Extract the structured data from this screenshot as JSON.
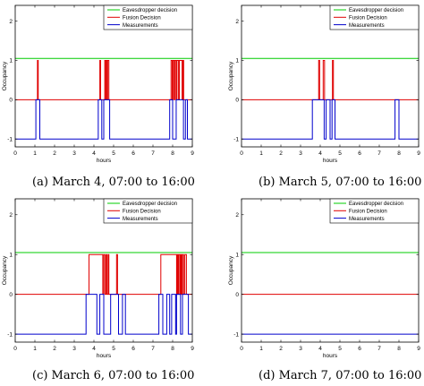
{
  "series_styles": [
    {
      "color": "#00cc00"
    },
    {
      "color": "#e00000"
    },
    {
      "color": "#0000cc"
    }
  ],
  "panels": [
    {
      "caption": "(a) March 4, 07:00 to 16:00",
      "chart_data": {
        "type": "line",
        "title": "",
        "xlabel": "hours",
        "ylabel": "Occupancy",
        "xlim": [
          0,
          9
        ],
        "ylim": [
          -1.2,
          2.4
        ],
        "xticks": [
          "0",
          "1",
          "2",
          "3",
          "4",
          "5",
          "6",
          "7",
          "8",
          "9"
        ],
        "yticks": [
          "-1",
          "0",
          "1",
          "2"
        ],
        "legend_position": "top-right",
        "series": [
          {
            "name": "Eavesdropper decision",
            "points": [
              [
                0,
                1.05
              ],
              [
                9,
                1.05
              ]
            ]
          },
          {
            "name": "Fusion Decision",
            "points": [
              [
                0,
                0
              ],
              [
                1.13,
                0
              ],
              [
                1.13,
                1
              ],
              [
                1.17,
                1
              ],
              [
                1.17,
                0
              ],
              [
                4.3,
                0
              ],
              [
                4.3,
                1
              ],
              [
                4.34,
                1
              ],
              [
                4.34,
                0
              ],
              [
                4.55,
                0
              ],
              [
                4.55,
                1
              ],
              [
                4.6,
                1
              ],
              [
                4.6,
                0
              ],
              [
                4.63,
                0
              ],
              [
                4.63,
                1
              ],
              [
                4.68,
                1
              ],
              [
                4.68,
                0
              ],
              [
                4.7,
                0
              ],
              [
                4.7,
                1
              ],
              [
                4.76,
                1
              ],
              [
                4.76,
                0
              ],
              [
                7.92,
                0
              ],
              [
                7.92,
                1
              ],
              [
                7.98,
                1
              ],
              [
                7.98,
                0
              ],
              [
                8.02,
                0
              ],
              [
                8.02,
                1
              ],
              [
                8.08,
                1
              ],
              [
                8.08,
                0
              ],
              [
                8.12,
                0
              ],
              [
                8.12,
                1
              ],
              [
                8.18,
                1
              ],
              [
                8.18,
                0
              ],
              [
                8.22,
                0
              ],
              [
                8.22,
                1
              ],
              [
                8.3,
                1
              ],
              [
                8.3,
                0
              ],
              [
                8.34,
                0
              ],
              [
                8.34,
                1
              ],
              [
                8.48,
                1
              ],
              [
                8.48,
                0
              ],
              [
                8.52,
                0
              ],
              [
                8.52,
                1
              ],
              [
                8.56,
                1
              ],
              [
                8.56,
                0
              ],
              [
                9,
                0
              ]
            ]
          },
          {
            "name": "Measurements",
            "points": [
              [
                0,
                -1
              ],
              [
                1.05,
                -1
              ],
              [
                1.05,
                0
              ],
              [
                1.25,
                0
              ],
              [
                1.25,
                -1
              ],
              [
                4.22,
                -1
              ],
              [
                4.22,
                0
              ],
              [
                4.4,
                0
              ],
              [
                4.4,
                -1
              ],
              [
                4.5,
                -1
              ],
              [
                4.5,
                0
              ],
              [
                4.8,
                0
              ],
              [
                4.8,
                -1
              ],
              [
                7.85,
                -1
              ],
              [
                7.85,
                0
              ],
              [
                8.0,
                0
              ],
              [
                8.0,
                -1
              ],
              [
                8.18,
                -1
              ],
              [
                8.18,
                0
              ],
              [
                8.55,
                0
              ],
              [
                8.55,
                -1
              ],
              [
                8.65,
                -1
              ],
              [
                8.65,
                0
              ],
              [
                8.75,
                0
              ],
              [
                8.75,
                -1
              ],
              [
                9,
                -1
              ]
            ]
          }
        ]
      }
    },
    {
      "caption": "(b) March 5, 07:00 to 16:00",
      "chart_data": {
        "type": "line",
        "title": "",
        "xlabel": "hours",
        "ylabel": "Occupancy",
        "xlim": [
          0,
          9
        ],
        "ylim": [
          -1.2,
          2.4
        ],
        "xticks": [
          "0",
          "1",
          "2",
          "3",
          "4",
          "5",
          "6",
          "7",
          "8",
          "9"
        ],
        "yticks": [
          "-1",
          "0",
          "1",
          "2"
        ],
        "legend_position": "top-right",
        "series": [
          {
            "name": "Eavesdropper decision",
            "points": [
              [
                0,
                1.05
              ],
              [
                9,
                1.05
              ]
            ]
          },
          {
            "name": "Fusion Decision",
            "points": [
              [
                0,
                0
              ],
              [
                3.92,
                0
              ],
              [
                3.92,
                1
              ],
              [
                3.97,
                1
              ],
              [
                3.97,
                0
              ],
              [
                4.15,
                0
              ],
              [
                4.15,
                1
              ],
              [
                4.22,
                1
              ],
              [
                4.22,
                0
              ],
              [
                4.62,
                0
              ],
              [
                4.62,
                1
              ],
              [
                4.67,
                1
              ],
              [
                4.67,
                0
              ],
              [
                9,
                0
              ]
            ]
          },
          {
            "name": "Measurements",
            "points": [
              [
                0,
                -1
              ],
              [
                3.6,
                -1
              ],
              [
                3.6,
                0
              ],
              [
                4.2,
                0
              ],
              [
                4.2,
                -1
              ],
              [
                4.3,
                -1
              ],
              [
                4.3,
                0
              ],
              [
                4.5,
                0
              ],
              [
                4.5,
                -1
              ],
              [
                4.6,
                -1
              ],
              [
                4.6,
                0
              ],
              [
                4.75,
                0
              ],
              [
                4.75,
                -1
              ],
              [
                7.8,
                -1
              ],
              [
                7.8,
                0
              ],
              [
                8.0,
                0
              ],
              [
                8.0,
                -1
              ],
              [
                9,
                -1
              ]
            ]
          }
        ]
      }
    },
    {
      "caption": "(c) March 6, 07:00 to 16:00",
      "chart_data": {
        "type": "line",
        "title": "",
        "xlabel": "hours",
        "ylabel": "Occupancy",
        "xlim": [
          0,
          9
        ],
        "ylim": [
          -1.2,
          2.4
        ],
        "xticks": [
          "0",
          "1",
          "2",
          "3",
          "4",
          "5",
          "6",
          "7",
          "8",
          "9"
        ],
        "yticks": [
          "-1",
          "0",
          "1",
          "2"
        ],
        "legend_position": "top-right",
        "series": [
          {
            "name": "Eavesdropper decision",
            "points": [
              [
                0,
                1.05
              ],
              [
                9,
                1.05
              ]
            ]
          },
          {
            "name": "Fusion Decision",
            "points": [
              [
                0,
                0
              ],
              [
                3.75,
                0
              ],
              [
                3.75,
                1
              ],
              [
                4.45,
                1
              ],
              [
                4.45,
                0
              ],
              [
                4.5,
                0
              ],
              [
                4.5,
                1
              ],
              [
                4.56,
                1
              ],
              [
                4.56,
                0
              ],
              [
                4.62,
                0
              ],
              [
                4.62,
                1
              ],
              [
                4.66,
                1
              ],
              [
                4.66,
                0
              ],
              [
                4.72,
                0
              ],
              [
                4.72,
                1
              ],
              [
                4.76,
                1
              ],
              [
                4.76,
                0
              ],
              [
                5.15,
                0
              ],
              [
                5.15,
                1
              ],
              [
                5.2,
                1
              ],
              [
                5.2,
                0
              ],
              [
                7.4,
                0
              ],
              [
                7.4,
                1
              ],
              [
                8.2,
                1
              ],
              [
                8.2,
                0
              ],
              [
                8.24,
                0
              ],
              [
                8.24,
                1
              ],
              [
                8.28,
                1
              ],
              [
                8.28,
                0
              ],
              [
                8.32,
                0
              ],
              [
                8.32,
                1
              ],
              [
                8.38,
                1
              ],
              [
                8.38,
                0
              ],
              [
                8.42,
                0
              ],
              [
                8.42,
                1
              ],
              [
                8.46,
                1
              ],
              [
                8.46,
                0
              ],
              [
                8.5,
                0
              ],
              [
                8.5,
                1
              ],
              [
                8.56,
                1
              ],
              [
                8.56,
                0
              ],
              [
                8.62,
                0
              ],
              [
                8.62,
                1
              ],
              [
                8.7,
                1
              ],
              [
                8.7,
                0
              ],
              [
                9,
                0
              ]
            ]
          },
          {
            "name": "Measurements",
            "points": [
              [
                0,
                -1
              ],
              [
                3.6,
                -1
              ],
              [
                3.6,
                0
              ],
              [
                4.15,
                0
              ],
              [
                4.15,
                -1
              ],
              [
                4.3,
                -1
              ],
              [
                4.3,
                0
              ],
              [
                4.5,
                0
              ],
              [
                4.5,
                -1
              ],
              [
                4.85,
                -1
              ],
              [
                4.85,
                0
              ],
              [
                5.25,
                0
              ],
              [
                5.25,
                -1
              ],
              [
                5.45,
                -1
              ],
              [
                5.45,
                0
              ],
              [
                5.6,
                0
              ],
              [
                5.6,
                -1
              ],
              [
                7.3,
                -1
              ],
              [
                7.3,
                0
              ],
              [
                7.5,
                0
              ],
              [
                7.5,
                -1
              ],
              [
                7.7,
                -1
              ],
              [
                7.7,
                0
              ],
              [
                7.85,
                0
              ],
              [
                7.85,
                -1
              ],
              [
                7.95,
                -1
              ],
              [
                7.95,
                0
              ],
              [
                8.15,
                0
              ],
              [
                8.15,
                -1
              ],
              [
                8.2,
                -1
              ],
              [
                8.2,
                0
              ],
              [
                8.4,
                0
              ],
              [
                8.4,
                -1
              ],
              [
                8.5,
                -1
              ],
              [
                8.5,
                0
              ],
              [
                8.8,
                0
              ],
              [
                8.8,
                -1
              ],
              [
                9,
                -1
              ]
            ]
          }
        ]
      }
    },
    {
      "caption": "(d) March 7, 07:00 to 16:00",
      "chart_data": {
        "type": "line",
        "title": "",
        "xlabel": "hours",
        "ylabel": "Occupancy",
        "xlim": [
          0,
          9
        ],
        "ylim": [
          -1.2,
          2.4
        ],
        "xticks": [
          "0",
          "1",
          "2",
          "3",
          "4",
          "5",
          "6",
          "7",
          "8",
          "9"
        ],
        "yticks": [
          "-1",
          "0",
          "1",
          "2"
        ],
        "legend_position": "top-right",
        "series": [
          {
            "name": "Eavesdropper decision",
            "points": [
              [
                0,
                1.05
              ],
              [
                9,
                1.05
              ]
            ]
          },
          {
            "name": "Fusion Decision",
            "points": [
              [
                0,
                0
              ],
              [
                9,
                0
              ]
            ]
          },
          {
            "name": "Measurements",
            "points": [
              [
                0,
                -1
              ],
              [
                9,
                -1
              ]
            ]
          }
        ]
      }
    }
  ]
}
